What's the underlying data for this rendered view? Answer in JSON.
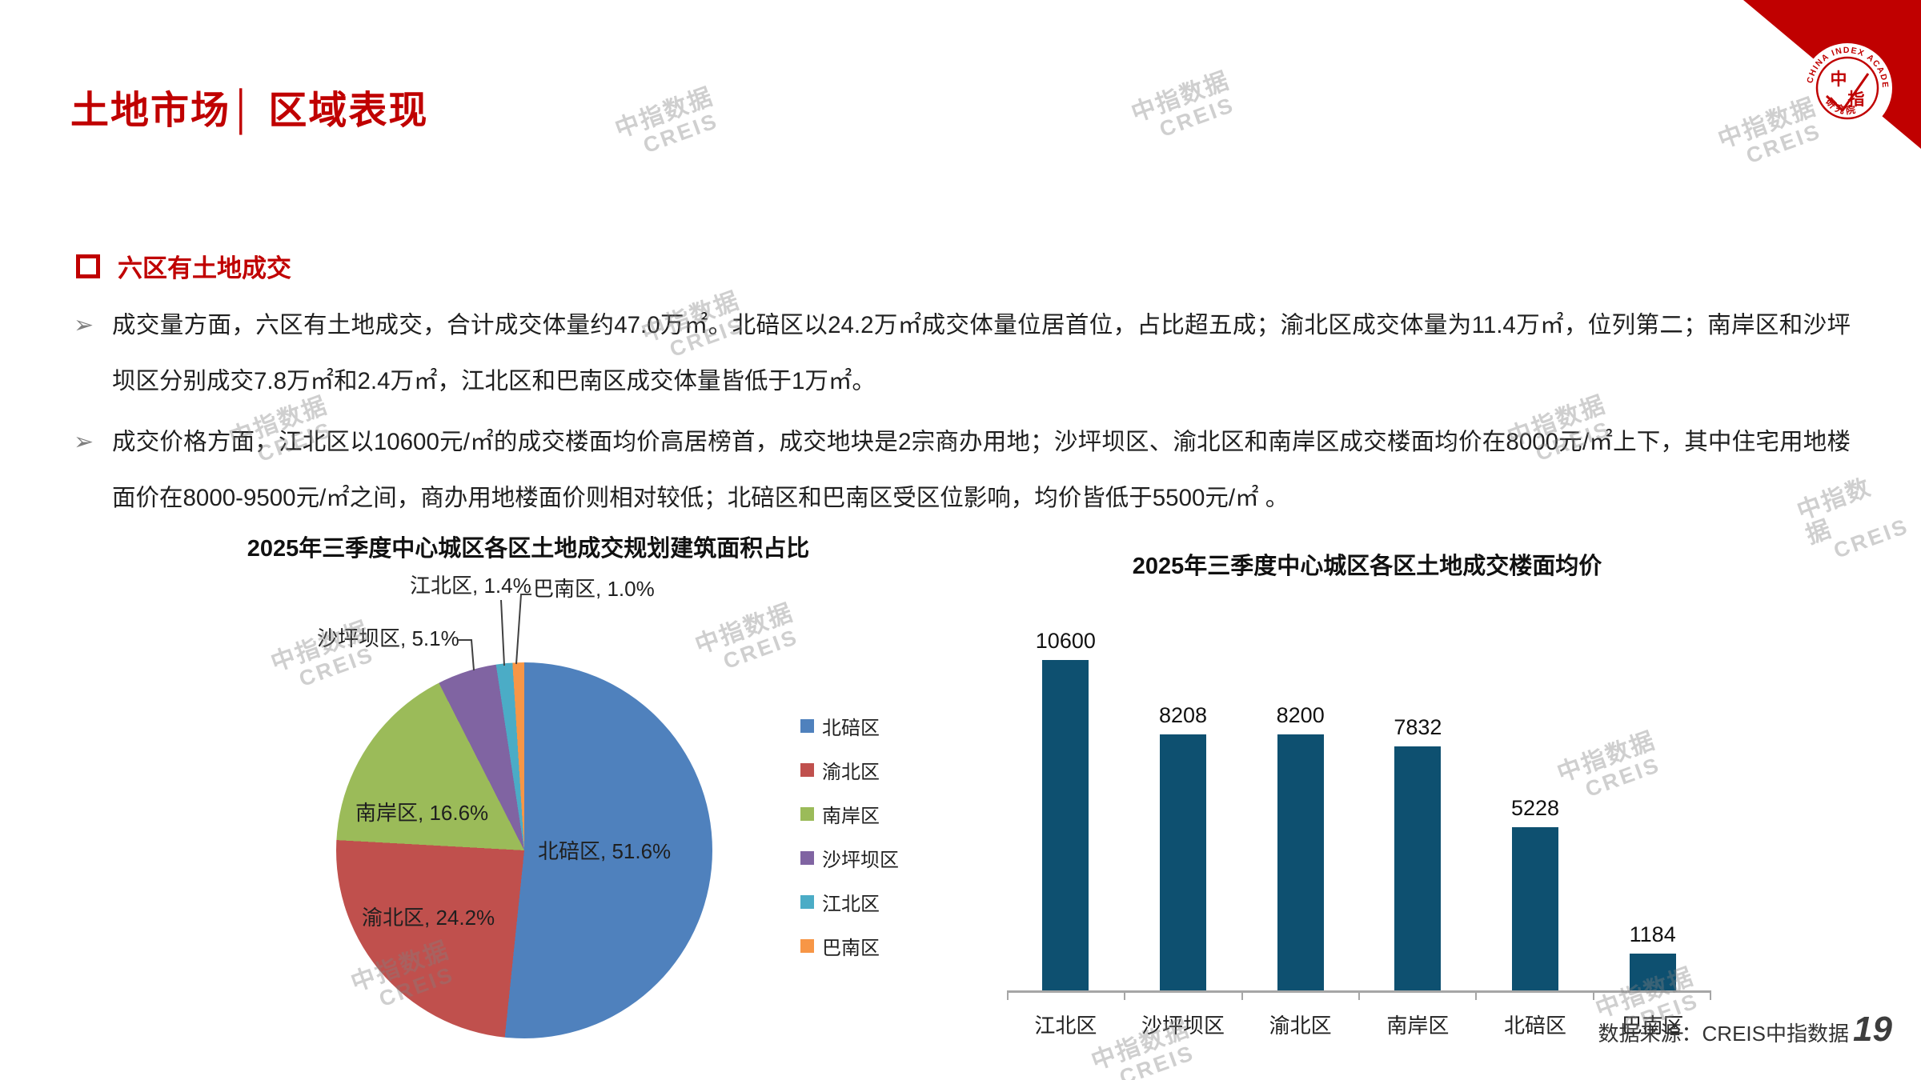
{
  "slide": {
    "title": "土地市场│ 区域表现",
    "section_heading": "六区有土地成交",
    "bullet_marker": "➢",
    "bullets": [
      "成交量方面，六区有土地成交，合计成交体量约47.0万㎡。北碚区以24.2万㎡成交体量位居首位，占比超五成；渝北区成交体量为11.4万㎡，位列第二；南岸区和沙坪坝区分别成交7.8万㎡和2.4万㎡，江北区和巴南区成交体量皆低于1万㎡。",
      "成交价格方面，江北区以10600元/㎡的成交楼面均价高居榜首，成交地块是2宗商办用地；沙坪坝区、渝北区和南岸区成交楼面均价在8000元/㎡上下，其中住宅用地楼面价在8000-9500元/㎡之间，商办用地楼面价则相对较低；北碚区和巴南区受区位影响，均价皆低于5500元/㎡ 。"
    ],
    "footer": {
      "source": "数据来源：CREIS中指数据",
      "page_number": "19"
    },
    "watermark": {
      "line1": "中指数据",
      "line2": "CREIS"
    },
    "logo": {
      "ring_text": "CHINA INDEX ACADEMY",
      "bottom_text": "研 究 院",
      "char_top": "中",
      "char_bottom": "指"
    }
  },
  "chart_data": [
    {
      "type": "pie",
      "title": "2025年三季度中心城区各区土地成交规划建筑面积占比",
      "categories": [
        "北碚区",
        "渝北区",
        "南岸区",
        "沙坪坝区",
        "江北区",
        "巴南区"
      ],
      "values": [
        51.6,
        24.2,
        16.6,
        5.1,
        1.4,
        1.0
      ],
      "unit": "%",
      "colors": [
        "#4F81BD",
        "#C0504D",
        "#9BBB59",
        "#8064A2",
        "#4BACC6",
        "#F79646"
      ],
      "labels": [
        "北碚区, 51.6%",
        "渝北区, 24.2%",
        "南岸区, 16.6%",
        "沙坪坝区, 5.1%",
        "江北区, 1.4%",
        "巴南区, 1.0%"
      ],
      "legend_position": "right",
      "start_angle": 0,
      "direction": "clockwise"
    },
    {
      "type": "bar",
      "title": "2025年三季度中心城区各区土地成交楼面均价",
      "categories": [
        "江北区",
        "沙坪坝区",
        "渝北区",
        "南岸区",
        "北碚区",
        "巴南区"
      ],
      "values": [
        10600,
        8208,
        8200,
        7832,
        5228,
        1184
      ],
      "bar_color": "#0E5070",
      "ylim": [
        0,
        12000
      ],
      "grid": false,
      "value_labels": true,
      "unit": "元/㎡"
    }
  ]
}
